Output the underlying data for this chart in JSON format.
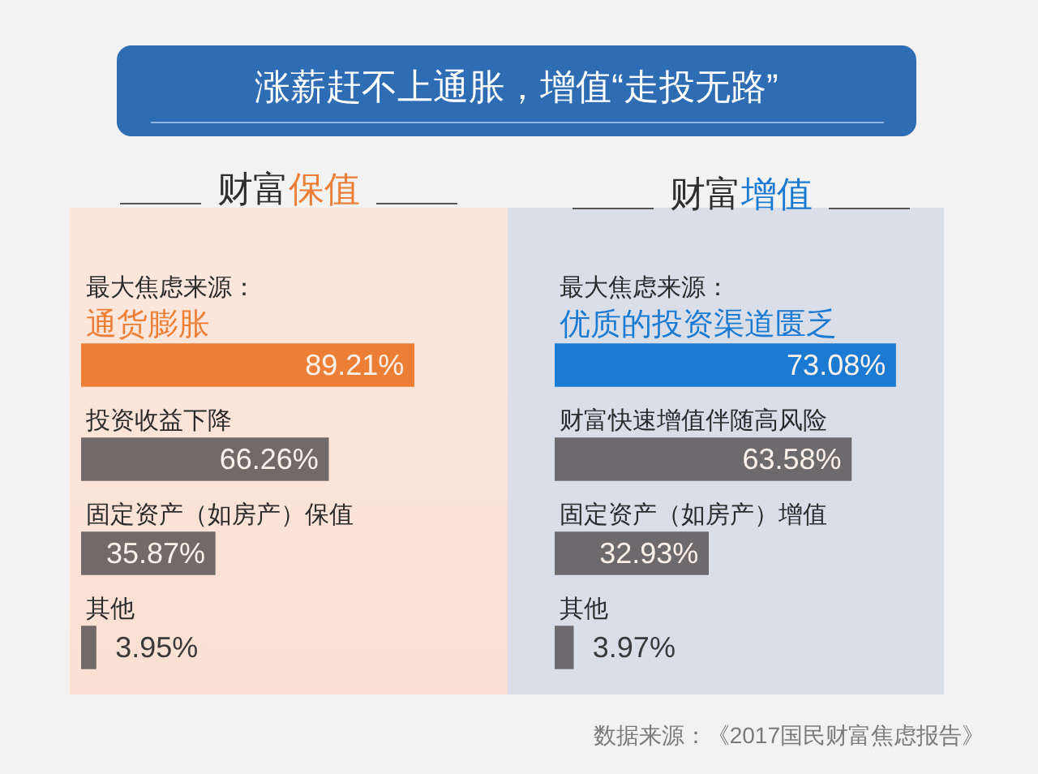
{
  "chart_data": [
    {
      "type": "other",
      "title": "涨薪赶不上通胀，增值“走投无路”"
    },
    {
      "type": "bar",
      "orientation": "horizontal",
      "title": "财富保值",
      "subtitle": "最大焦虑来源：",
      "categories": [
        "通货膨胀",
        "投资收益下降",
        "固定资产（如房产）保值",
        "其他"
      ],
      "values": [
        89.21,
        66.26,
        35.87,
        3.95
      ],
      "colors": [
        "#ec7f35",
        "#716a68",
        "#716a68",
        "#716a68"
      ],
      "value_labels": [
        "89.21%",
        "66.26%",
        "35.87%",
        "3.95%"
      ],
      "tick_labels": "y"
    },
    {
      "type": "bar",
      "orientation": "horizontal",
      "title": "财富增值",
      "subtitle": "最大焦虑来源：",
      "categories": [
        "优质的投资渠道匮乏",
        "财富快速增值伴随高风险",
        "固定资产（如房产）增值",
        "其他"
      ],
      "values": [
        73.08,
        63.58,
        32.93,
        3.97
      ],
      "colors": [
        "#1b7bd2",
        "#6d6a6e",
        "#6d6a6e",
        "#6d6a6e"
      ],
      "value_labels": [
        "73.08%",
        "63.58%",
        "32.93%",
        "3.97%"
      ],
      "tick_labels": "y",
      "annotations": [
        "数据来源：《2017国民财富焦虑报告》"
      ]
    }
  ]
}
